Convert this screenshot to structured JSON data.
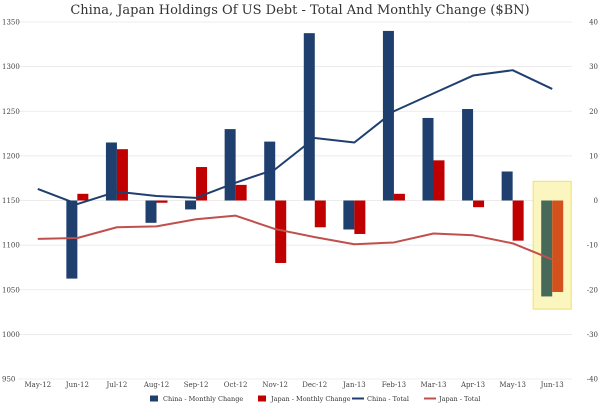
{
  "chart_data": {
    "type": "bar+line",
    "title": "China, Japan Holdings Of US Debt - Total And Monthly Change ($BN)",
    "categories": [
      "May-12",
      "Jun-12",
      "Jul-12",
      "Aug-12",
      "Sep-12",
      "Oct-12",
      "Nov-12",
      "Dec-12",
      "Jan-13",
      "Feb-13",
      "Mar-13",
      "Apr-13",
      "May-13",
      "Jun-13"
    ],
    "left_axis": {
      "min": 950,
      "max": 1350,
      "ticks": [
        950,
        1000,
        1050,
        1100,
        1150,
        1200,
        1250,
        1300,
        1350
      ]
    },
    "right_axis": {
      "min": -40,
      "max": 40,
      "ticks": [
        -40,
        -30,
        -20,
        -10,
        0,
        10,
        20,
        30,
        40
      ]
    },
    "series": [
      {
        "name": "China - Monthly Change",
        "kind": "bar",
        "axis": "right",
        "color": "#1f3f6e",
        "values": [
          null,
          -17.5,
          13,
          -5,
          -2,
          16,
          13.2,
          37.5,
          -6.5,
          38,
          18.5,
          20.5,
          6.5,
          -21.5
        ]
      },
      {
        "name": "Japan - Monthly Change",
        "kind": "bar",
        "axis": "right",
        "color": "#c00000",
        "values": [
          null,
          1.5,
          11.5,
          -0.5,
          7.5,
          3.5,
          -14,
          -6,
          -7.5,
          1.5,
          9,
          -1.5,
          -9,
          -20.5
        ]
      },
      {
        "name": "China - Total",
        "kind": "line",
        "axis": "left",
        "color": "#1f3f6e",
        "values": [
          1163,
          1146,
          1160,
          1155,
          1153,
          1170,
          1185,
          1220,
          1215,
          1250,
          1270,
          1290,
          1296,
          1275
        ]
      },
      {
        "name": "Japan - Total",
        "kind": "line",
        "axis": "left",
        "color": "#c0504d",
        "values": [
          1107,
          1108,
          1120,
          1121,
          1129,
          1133,
          1118,
          1109,
          1101,
          1103,
          1113,
          1111,
          1102,
          1084
        ]
      }
    ],
    "highlight_category": "Jun-13",
    "legend_position": "bottom"
  }
}
